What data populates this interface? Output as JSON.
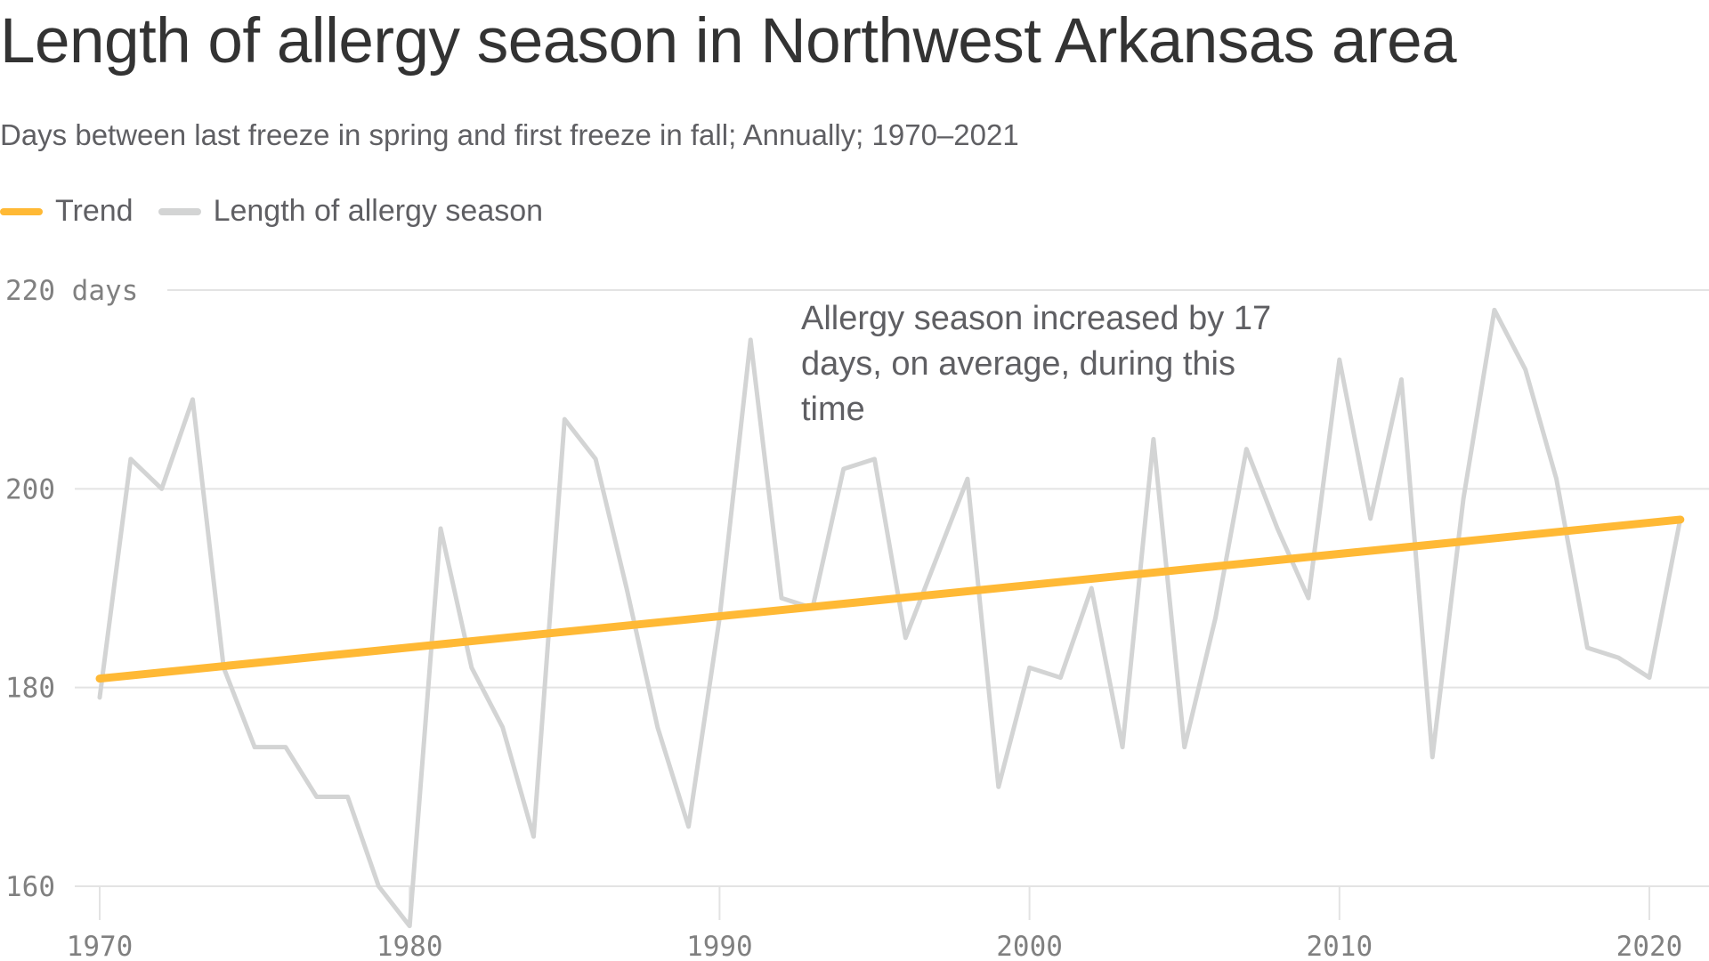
{
  "header": {
    "title": "Length of allergy season in Northwest Arkansas area",
    "subtitle": "Days between last freeze in spring and first freeze in fall; Annually; 1970–2021"
  },
  "legend": [
    {
      "label": "Trend",
      "color": "#ffb935"
    },
    {
      "label": "Length of allergy season",
      "color": "#d3d4d4"
    }
  ],
  "annotation": "Allergy season increased by 17 days, on average, during this time",
  "chart_data": {
    "type": "line",
    "title": "Length of allergy season in Northwest Arkansas area",
    "subtitle": "Days between last freeze in spring and first freeze in fall; Annually; 1970–2021",
    "xlabel": "",
    "ylabel": "days",
    "ylim": [
      160,
      220
    ],
    "xlim": [
      1970,
      2021
    ],
    "y_ticks": [
      160,
      180,
      200,
      220
    ],
    "y_tick_labels": [
      "160",
      "180",
      "200",
      "220 days"
    ],
    "x_ticks": [
      1970,
      1980,
      1990,
      2000,
      2010,
      2020
    ],
    "x_tick_labels": [
      "1970",
      "1980",
      "1990",
      "2000",
      "2010",
      "2020"
    ],
    "grid": true,
    "legend_position": "top-left",
    "x": [
      1970,
      1971,
      1972,
      1973,
      1974,
      1975,
      1976,
      1977,
      1978,
      1979,
      1980,
      1981,
      1982,
      1983,
      1984,
      1985,
      1986,
      1987,
      1988,
      1989,
      1990,
      1991,
      1992,
      1993,
      1994,
      1995,
      1996,
      1997,
      1998,
      1999,
      2000,
      2001,
      2002,
      2003,
      2004,
      2005,
      2006,
      2007,
      2008,
      2009,
      2010,
      2011,
      2012,
      2013,
      2014,
      2015,
      2016,
      2017,
      2018,
      2019,
      2020,
      2021
    ],
    "series": [
      {
        "name": "Length of allergy season",
        "color": "#d3d4d4",
        "values": [
          179,
          203,
          200,
          209,
          182,
          174,
          174,
          169,
          169,
          160,
          156,
          196,
          182,
          176,
          165,
          207,
          203,
          190,
          176,
          166,
          187,
          215,
          189,
          188,
          202,
          203,
          185,
          193,
          201,
          170,
          182,
          181,
          190,
          174,
          205,
          174,
          187,
          204,
          196,
          189,
          213,
          197,
          211,
          173,
          199,
          218,
          212,
          201,
          184,
          183,
          181,
          197
        ]
      },
      {
        "name": "Trend",
        "color": "#ffb935",
        "x": [
          1970,
          2021
        ],
        "values": [
          180.9,
          196.9
        ]
      }
    ],
    "annotations": [
      {
        "text": "Allergy season increased by 17 days, on average, during this time",
        "x": 1993,
        "y": 218
      }
    ]
  }
}
